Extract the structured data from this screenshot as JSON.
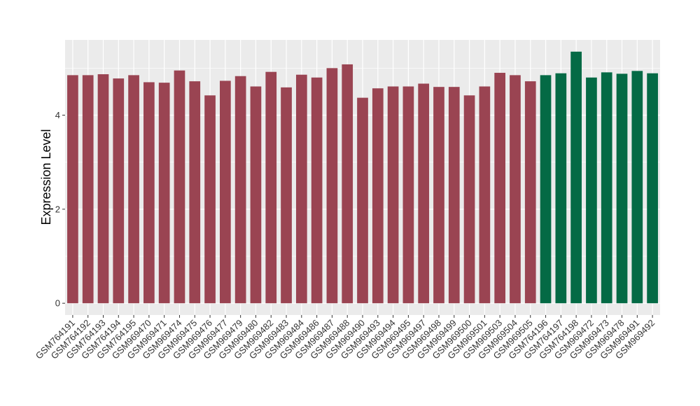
{
  "chart_data": {
    "type": "bar",
    "title": "",
    "xlabel": "",
    "ylabel": "Expression Level",
    "ylim": [
      -0.25,
      5.6
    ],
    "yticks": [
      0,
      2,
      4
    ],
    "grid": true,
    "legend": "none",
    "colors": {
      "group1": "#9a4452",
      "group2": "#046a45",
      "panel": "#ebebeb",
      "gridline": "#ffffff"
    },
    "categories": [
      "GSM764191",
      "GSM764192",
      "GSM764193",
      "GSM764194",
      "GSM764195",
      "GSM969470",
      "GSM969471",
      "GSM969474",
      "GSM969475",
      "GSM969476",
      "GSM969477",
      "GSM969479",
      "GSM969480",
      "GSM969482",
      "GSM969483",
      "GSM969484",
      "GSM969486",
      "GSM969487",
      "GSM969488",
      "GSM969490",
      "GSM969493",
      "GSM969494",
      "GSM969495",
      "GSM969497",
      "GSM969498",
      "GSM969499",
      "GSM969500",
      "GSM969501",
      "GSM969503",
      "GSM969504",
      "GSM969505",
      "GSM764196",
      "GSM764197",
      "GSM764198",
      "GSM969472",
      "GSM969473",
      "GSM969478",
      "GSM969491",
      "GSM969492"
    ],
    "values": [
      4.85,
      4.85,
      4.87,
      4.78,
      4.85,
      4.7,
      4.69,
      4.95,
      4.72,
      4.42,
      4.73,
      4.83,
      4.61,
      4.92,
      4.59,
      4.86,
      4.8,
      5.0,
      5.08,
      4.37,
      4.57,
      4.61,
      4.61,
      4.67,
      4.6,
      4.6,
      4.42,
      4.61,
      4.9,
      4.85,
      4.72,
      4.85,
      4.89,
      5.35,
      4.8,
      4.91,
      4.88,
      4.94,
      4.89
    ],
    "groups": [
      "group1",
      "group1",
      "group1",
      "group1",
      "group1",
      "group1",
      "group1",
      "group1",
      "group1",
      "group1",
      "group1",
      "group1",
      "group1",
      "group1",
      "group1",
      "group1",
      "group1",
      "group1",
      "group1",
      "group1",
      "group1",
      "group1",
      "group1",
      "group1",
      "group1",
      "group1",
      "group1",
      "group1",
      "group1",
      "group1",
      "group1",
      "group2",
      "group2",
      "group2",
      "group2",
      "group2",
      "group2",
      "group2",
      "group2"
    ]
  }
}
